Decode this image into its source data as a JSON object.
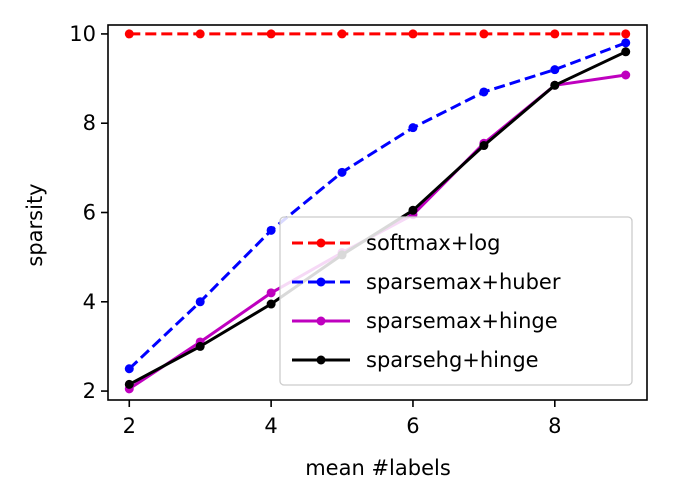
{
  "chart_data": {
    "type": "line",
    "xlabel": "mean #labels",
    "ylabel": "sparsity",
    "xlim": [
      1.7,
      9.3
    ],
    "ylim": [
      1.8,
      10.2
    ],
    "xticks": [
      2,
      4,
      6,
      8
    ],
    "yticks": [
      2,
      4,
      6,
      8,
      10
    ],
    "x": [
      2,
      3,
      4,
      5,
      6,
      7,
      8,
      9
    ],
    "grid": false,
    "legend_position": "lower-right",
    "series": [
      {
        "name": "softmax+log",
        "color": "#ff0000",
        "style": "dashed",
        "marker": "dot",
        "values": [
          10,
          10,
          10,
          10,
          10,
          10,
          10,
          10
        ]
      },
      {
        "name": "sparsemax+huber",
        "color": "#0000ff",
        "style": "dashed",
        "marker": "dot",
        "values": [
          2.5,
          4.0,
          5.6,
          6.9,
          7.9,
          8.7,
          9.2,
          9.8
        ]
      },
      {
        "name": "sparsemax+hinge",
        "color": "#bf00bf",
        "style": "solid",
        "marker": "dot",
        "values": [
          2.05,
          3.1,
          4.2,
          5.1,
          5.95,
          7.55,
          8.85,
          9.08
        ]
      },
      {
        "name": "sparsehg+hinge",
        "color": "#000000",
        "style": "solid",
        "marker": "dot",
        "values": [
          2.15,
          3.0,
          3.95,
          5.05,
          6.05,
          7.5,
          8.85,
          9.6
        ]
      }
    ]
  }
}
